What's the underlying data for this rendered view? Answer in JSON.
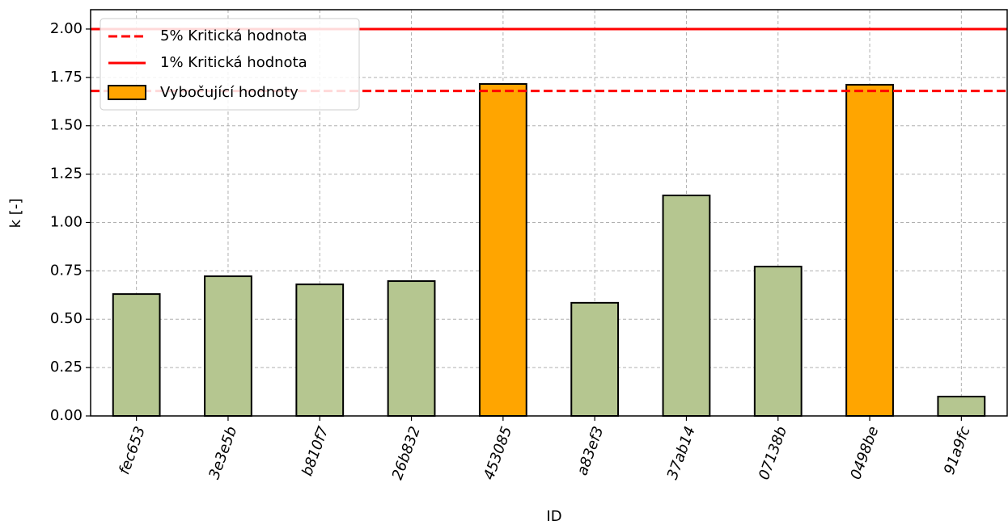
{
  "chart_data": {
    "type": "bar",
    "xlabel": "ID",
    "ylabel": "k [-]",
    "categories": [
      "fec653",
      "3e3e5b",
      "b810f7",
      "26b832",
      "453085",
      "a83ef3",
      "37ab14",
      "07138b",
      "0498be",
      "91a9fc"
    ],
    "values": [
      0.63,
      0.722,
      0.68,
      0.697,
      1.716,
      0.585,
      1.14,
      0.772,
      1.712,
      0.1
    ],
    "colors": [
      "#b5c690",
      "#b5c690",
      "#b5c690",
      "#b5c690",
      "#ffa500",
      "#b5c690",
      "#b5c690",
      "#b5c690",
      "#ffa500",
      "#b5c690"
    ],
    "reference_lines": [
      {
        "name": "5% Kritická hodnota",
        "value": 1.68,
        "color": "#ff0000",
        "style": "dashed"
      },
      {
        "name": "1% Kritická hodnota",
        "value": 2.0,
        "color": "#ff0000",
        "style": "solid"
      }
    ],
    "outlier_legend": {
      "name": "Vybočující hodnoty",
      "color": "#ffa500"
    },
    "ylim": [
      0,
      2.1
    ],
    "yticks": [
      {
        "value": 0,
        "label": "0.00"
      },
      {
        "value": 0.25,
        "label": "0.25"
      },
      {
        "value": 0.5,
        "label": "0.50"
      },
      {
        "value": 0.75,
        "label": "0.75"
      },
      {
        "value": 1,
        "label": "1.00"
      },
      {
        "value": 1.25,
        "label": "1.25"
      },
      {
        "value": 1.5,
        "label": "1.50"
      },
      {
        "value": 1.75,
        "label": "1.75"
      },
      {
        "value": 2,
        "label": "2.00"
      }
    ],
    "grid": true,
    "legend_position": "upper left"
  }
}
